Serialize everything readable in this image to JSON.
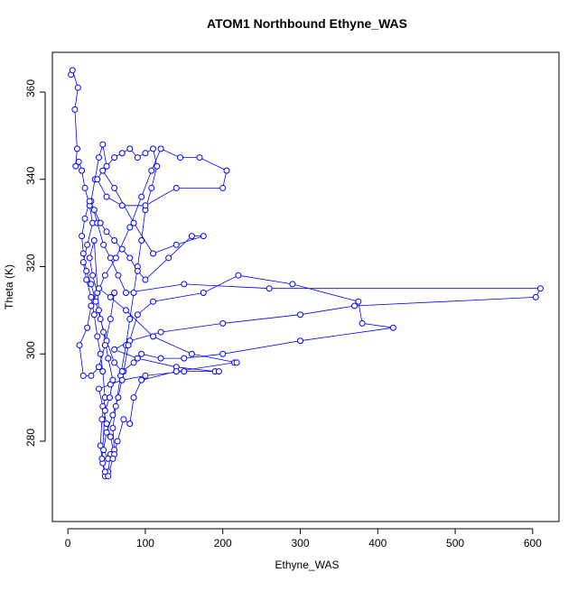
{
  "chart_data": {
    "type": "line",
    "title": "ATOM1 Northbound Ethyne_WAS",
    "x_label": "Ethyne_WAS",
    "y_label": "Theta (K)",
    "series": [
      {
        "color": "#0000ff",
        "x": [
          4,
          6,
          13,
          9,
          12,
          10,
          14,
          18,
          22,
          28,
          32,
          25,
          20,
          24,
          30,
          34,
          38,
          42,
          45,
          48,
          44,
          42,
          45,
          48,
          52,
          55,
          60,
          58,
          62,
          68,
          75,
          80,
          85,
          90,
          95,
          100,
          108,
          115,
          110,
          100,
          90,
          80,
          70,
          60,
          50,
          45,
          40,
          35,
          30,
          38,
          46,
          55,
          65,
          75,
          150,
          260,
          610,
          604,
          370,
          300,
          200,
          120,
          80,
          60,
          90,
          140,
          190,
          195,
          150,
          100,
          70,
          55,
          40,
          45,
          50,
          55,
          60,
          52,
          46,
          50,
          58,
          65,
          72,
          78,
          90,
          110,
          175,
          220,
          290,
          375,
          380,
          420,
          300,
          200,
          150,
          120,
          95,
          85,
          70,
          60,
          50,
          42,
          36,
          30,
          24,
          20,
          18,
          22,
          28,
          34,
          42,
          50,
          60,
          70,
          80,
          90,
          100,
          130,
          160,
          175,
          140,
          110,
          85,
          60,
          45,
          38,
          50,
          70,
          100,
          140,
          200,
          205,
          170,
          145,
          120,
          108,
          95,
          80,
          62,
          48,
          38,
          32,
          28,
          34,
          40,
          46,
          52,
          58,
          54,
          48,
          44,
          48,
          52,
          58,
          64,
          72,
          80,
          85,
          95,
          140,
          215,
          218,
          160,
          110,
          75,
          55,
          40,
          30,
          25,
          15,
          20,
          30,
          40,
          48,
          55,
          60
        ],
        "values": [
          364,
          365,
          361,
          356,
          347,
          343,
          344,
          342,
          338,
          334,
          330,
          325,
          321,
          317,
          313,
          309,
          304,
          300,
          296,
          290,
          285,
          279,
          275,
          272,
          273,
          277,
          278,
          283,
          288,
          295,
          302,
          308,
          314,
          320,
          326,
          333,
          338,
          343,
          347,
          346,
          345,
          347,
          346,
          345,
          343,
          348,
          345,
          340,
          335,
          330,
          325,
          322,
          318,
          314,
          316,
          315,
          315,
          313,
          311,
          309,
          307,
          305,
          303,
          301,
          299,
          297,
          296,
          296,
          296,
          295,
          294,
          293,
          292,
          288,
          284,
          281,
          277,
          276,
          278,
          282,
          286,
          290,
          296,
          302,
          309,
          312,
          314,
          318,
          316,
          312,
          307,
          306,
          303,
          300,
          299,
          299,
          300,
          298,
          296,
          298,
          303,
          308,
          312,
          316,
          319,
          323,
          327,
          331,
          335,
          333,
          330,
          328,
          326,
          324,
          322,
          319,
          317,
          322,
          327,
          327,
          325,
          323,
          330,
          338,
          342,
          340,
          336,
          334,
          334,
          338,
          338,
          342,
          345,
          345,
          347,
          342,
          336,
          329,
          322,
          318,
          314,
          318,
          322,
          326,
          310,
          305,
          299,
          294,
          290,
          287,
          276,
          273,
          272,
          276,
          280,
          285,
          284,
          290,
          294,
          296,
          298,
          298,
          300,
          304,
          310,
          313,
          315,
          311,
          306,
          302,
          295,
          295,
          297,
          302,
          308,
          314
        ]
      }
    ],
    "xlim": [
      -20,
      634
    ],
    "ylim": [
      261.6,
      369.1
    ],
    "xticks": [
      0,
      100,
      200,
      300,
      400,
      500,
      600
    ],
    "yticks": [
      280,
      300,
      320,
      340,
      360
    ]
  }
}
